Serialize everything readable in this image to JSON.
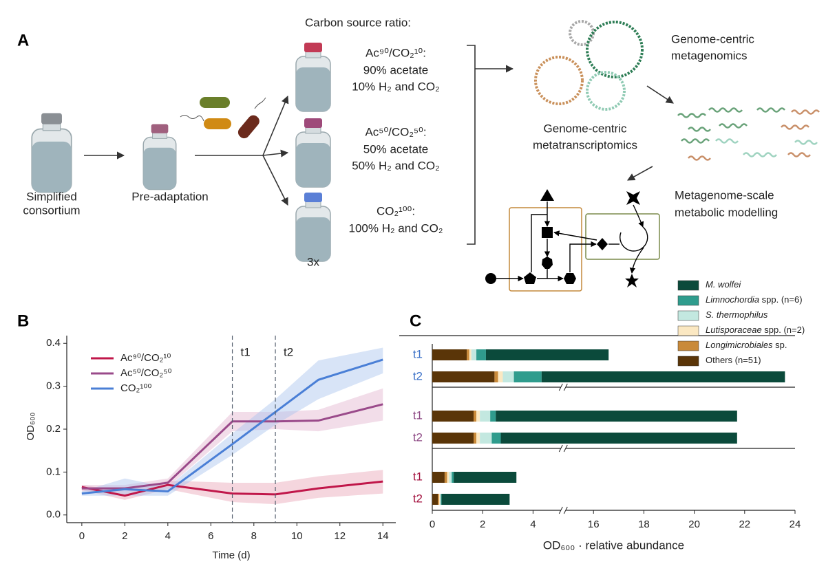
{
  "panel_labels": [
    "A",
    "B",
    "C"
  ],
  "panel_a": {
    "simplified_consortium": [
      "Simplified",
      "consortium"
    ],
    "pre_adaptation": "Pre-adaptation",
    "carbon_source_title": "Carbon source ratio:",
    "conditions": [
      {
        "name": "Ac⁹⁰/CO₂¹⁰:",
        "lines": [
          "90% acetate",
          "10% H₂ and CO₂"
        ]
      },
      {
        "name": "Ac⁵⁰/CO₂⁵⁰:",
        "lines": [
          "50% acetate",
          "50% H₂ and CO₂"
        ]
      },
      {
        "name": "CO₂¹⁰⁰:",
        "lines": [
          "100% H₂ and CO₂"
        ]
      }
    ],
    "replicates": "3x",
    "metagenomics": [
      "Genome-centric",
      "metagenomics"
    ],
    "metatranscriptomics": [
      "Genome-centric",
      "metatranscriptomics"
    ],
    "modelling": [
      "Metagenome-scale",
      "metabolic modelling"
    ]
  },
  "chart_data": [
    {
      "type": "line",
      "x": [
        0,
        2,
        4,
        7,
        9,
        11,
        14
      ],
      "series": [
        {
          "name": "Ac⁹⁰/CO₂¹⁰",
          "color": "#c0174a",
          "band_color": "#e8a3b6",
          "values": [
            0.065,
            0.045,
            0.07,
            0.05,
            0.048,
            0.062,
            0.078
          ],
          "lower": [
            0.058,
            0.035,
            0.06,
            0.03,
            0.025,
            0.04,
            0.05
          ],
          "upper": [
            0.07,
            0.055,
            0.08,
            0.075,
            0.075,
            0.09,
            0.105
          ]
        },
        {
          "name": "Ac⁵⁰/CO₂⁵⁰",
          "color": "#9a4a8a",
          "band_color": "#e3b4cf",
          "values": [
            0.062,
            0.062,
            0.075,
            0.218,
            0.218,
            0.22,
            0.258
          ],
          "lower": [
            0.055,
            0.055,
            0.065,
            0.195,
            0.2,
            0.195,
            0.22
          ],
          "upper": [
            0.07,
            0.07,
            0.085,
            0.24,
            0.24,
            0.245,
            0.295
          ]
        },
        {
          "name": "CO₂¹⁰⁰",
          "color": "#4a7fd6",
          "band_color": "#a9c4ee",
          "values": [
            0.05,
            0.06,
            0.055,
            0.165,
            0.24,
            0.315,
            0.362
          ],
          "lower": [
            0.045,
            0.045,
            0.045,
            0.14,
            0.21,
            0.27,
            0.33
          ],
          "upper": [
            0.055,
            0.085,
            0.065,
            0.19,
            0.27,
            0.36,
            0.39
          ]
        }
      ],
      "xlim": [
        -0.7,
        14.6
      ],
      "ylim": [
        -0.018,
        0.418
      ],
      "xticks": [
        0,
        2,
        4,
        6,
        8,
        10,
        12,
        14
      ],
      "yticks": [
        {
          "value": 0,
          "label": "0.0"
        },
        0.1,
        0.2,
        0.3,
        0.4
      ],
      "x_label": "Time (d)",
      "y_label": "OD₆₀₀",
      "annotations": [
        {
          "x": 7,
          "label": "t1"
        },
        {
          "x": 9,
          "label": "t2"
        }
      ],
      "legend": "upper left"
    },
    {
      "type": "bar",
      "orientation": "horizontal",
      "stacked": true,
      "categories": [
        "t1",
        "t2",
        "t1",
        "t2",
        "t1",
        "t2"
      ],
      "category_colors": [
        "#3f74c9",
        "#3f74c9",
        "#8e4a85",
        "#8e4a85",
        "#a3123f",
        "#a3123f"
      ],
      "series": [
        {
          "name": "M. wolfei",
          "color": "#0b4a3b",
          "values": [
            14.47,
            19.26,
            19.18,
            18.98,
            2.49,
            2.7
          ]
        },
        {
          "name": "Limnochordia spp. (n=6)",
          "color": "#2f9c8d",
          "values": [
            0.38,
            1.1,
            0.22,
            0.36,
            0.08,
            0.03
          ]
        },
        {
          "name": "S. thermophilus",
          "color": "#c3e8e0",
          "values": [
            0.2,
            0.44,
            0.41,
            0.47,
            0.1,
            0.03
          ]
        },
        {
          "name": "Lutisporaceae spp. (n=2)",
          "color": "#fbe8c2",
          "values": [
            0.08,
            0.19,
            0.14,
            0.14,
            0.08,
            0.04
          ]
        },
        {
          "name": "Longimicrobiales sp.",
          "color": "#c98a3a",
          "values": [
            0.1,
            0.14,
            0.11,
            0.11,
            0.1,
            0.05
          ]
        },
        {
          "name": "Others (n=51)",
          "color": "#5a3508",
          "values": [
            1.37,
            2.47,
            1.64,
            1.64,
            0.49,
            0.22
          ]
        }
      ],
      "xlim": [
        0,
        24
      ],
      "xbreak": [
        5.2,
        14.8
      ],
      "xticks": [
        0,
        2,
        4,
        16,
        18,
        20,
        22,
        24
      ],
      "x_label": "OD₆₀₀ · relative abundance",
      "legend": "upper right"
    }
  ]
}
